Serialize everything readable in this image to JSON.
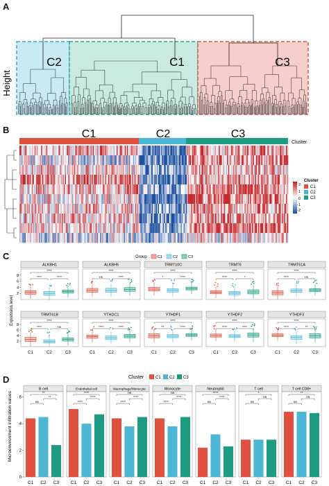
{
  "panels": {
    "a": "A",
    "b": "B",
    "c": "C",
    "d": "D"
  },
  "panelA": {
    "ylabel": "Height",
    "clusters": [
      {
        "label": "C2",
        "color": "#bfe6f2",
        "stroke": "#3aa9cf"
      },
      {
        "label": "C1",
        "color": "#bfe6dc",
        "stroke": "#2aa385"
      },
      {
        "label": "C3",
        "color": "#f6c7c1",
        "stroke": "#d6574a"
      }
    ]
  },
  "panelB": {
    "groups": [
      {
        "label": "C1",
        "color": "#e0523f"
      },
      {
        "label": "C2",
        "color": "#4db6d4"
      },
      {
        "label": "C3",
        "color": "#1e9b82"
      }
    ],
    "cluster_annot_label": "Cluster",
    "legend": {
      "scale_ticks": [
        "2",
        "1",
        "0",
        "-1",
        "-2"
      ],
      "title": "Cluster",
      "items": [
        {
          "label": "C1",
          "color": "#e0523f"
        },
        {
          "label": "C2",
          "color": "#4db6d4"
        },
        {
          "label": "C3",
          "color": "#1e9b82"
        }
      ]
    }
  },
  "chart_data": [
    {
      "type": "box",
      "panel": "C",
      "legend_title": "Group",
      "groups": [
        "C1",
        "C2",
        "C3"
      ],
      "colors": [
        "#e0523f",
        "#4db6d4",
        "#1e9b82"
      ],
      "ylabel": "Expression level",
      "yticks": [
        "2",
        "4",
        "6",
        "8"
      ],
      "ylim": [
        0,
        10
      ],
      "genes": [
        {
          "name": "ALKBH1",
          "medians": [
            2.3,
            2.0,
            2.6
          ],
          "sig": [
            "****",
            "****",
            "****"
          ]
        },
        {
          "name": "ALKBH5",
          "medians": [
            3.0,
            3.0,
            3.3
          ],
          "sig": [
            "ns",
            "****",
            "****"
          ]
        },
        {
          "name": "TRMT10C",
          "medians": [
            3.4,
            3.0,
            3.6
          ],
          "sig": [
            "*",
            "****",
            "****"
          ]
        },
        {
          "name": "TRMT6",
          "medians": [
            2.4,
            2.1,
            2.5
          ],
          "sig": [
            "****",
            "*",
            "****"
          ]
        },
        {
          "name": "TRMT61A",
          "medians": [
            2.2,
            2.9,
            3.1
          ],
          "sig": [
            "****",
            "ns",
            "****"
          ]
        },
        {
          "name": "TRMT61B",
          "medians": [
            2.6,
            1.9,
            2.6
          ],
          "sig": [
            "****",
            "ns",
            "****"
          ]
        },
        {
          "name": "YTHDC1",
          "medians": [
            3.6,
            3.2,
            3.8
          ],
          "sig": [
            "****",
            "****",
            "****"
          ]
        },
        {
          "name": "YTHDF1",
          "medians": [
            3.9,
            3.8,
            4.2
          ],
          "sig": [
            "**",
            "****",
            "****"
          ]
        },
        {
          "name": "YTHDF2",
          "medians": [
            4.0,
            3.8,
            4.2
          ],
          "sig": [
            "****",
            "****",
            "****"
          ]
        },
        {
          "name": "YTHDF3",
          "medians": [
            4.1,
            3.3,
            3.9
          ],
          "sig": [
            "****",
            "**",
            "****"
          ]
        }
      ],
      "xticks": [
        "C1",
        "C2",
        "C3"
      ]
    },
    {
      "type": "bar",
      "panel": "D",
      "legend_title": "Cluster",
      "series_names": [
        "C1",
        "C2",
        "C3"
      ],
      "colors": [
        "#e0523f",
        "#4db6d4",
        "#1e9b82"
      ],
      "ylabel": "Microenvironment infiltration values",
      "yticks": [
        "0",
        "2",
        "4",
        "6"
      ],
      "ylim": [
        0,
        6.4
      ],
      "categories": [
        {
          "name": "B cell",
          "values": [
            4.4,
            4.5,
            2.4
          ],
          "sig": [
            "**",
            "**",
            "ns"
          ]
        },
        {
          "name": "Endothelial cell",
          "values": [
            5.1,
            4.0,
            4.7
          ],
          "sig": [
            "****",
            "****",
            "****"
          ]
        },
        {
          "name": "Macrophage/Monocyte",
          "values": [
            4.4,
            3.8,
            4.5
          ],
          "sig": [
            "ns",
            "****",
            "****"
          ]
        },
        {
          "name": "Monocyte",
          "values": [
            4.4,
            3.8,
            4.5
          ],
          "sig": [
            "ns",
            "****",
            "****"
          ]
        },
        {
          "name": "Neutrophil",
          "values": [
            2.2,
            3.2,
            2.3
          ],
          "sig": [
            "****",
            "****",
            "ns"
          ]
        },
        {
          "name": "T cell",
          "values": [
            2.8,
            2.8,
            2.8
          ],
          "sig": [
            "*",
            "ns",
            "ns"
          ]
        },
        {
          "name": "T cell CD8+",
          "values": [
            4.9,
            4.9,
            4.8
          ],
          "sig": [
            "**",
            "ns",
            "ns"
          ]
        }
      ],
      "xticks": [
        "C1",
        "C2",
        "C3"
      ]
    }
  ]
}
